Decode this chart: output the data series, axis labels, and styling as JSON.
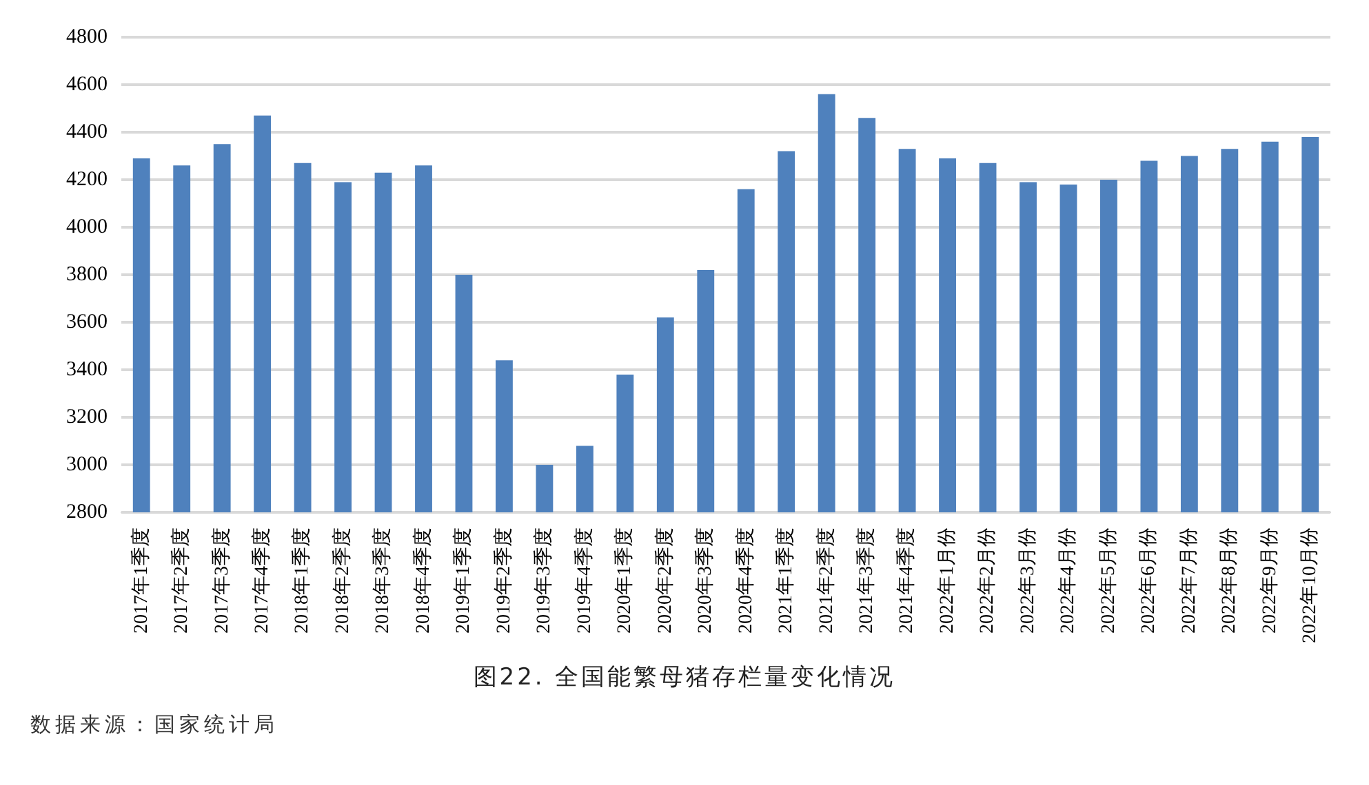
{
  "chart_data": {
    "type": "bar",
    "title": "图22.  全国能繁母猪存栏量变化情况",
    "annotations": [
      "数据来源：国家统计局"
    ],
    "categories": [
      "2017年1季度",
      "2017年2季度",
      "2017年3季度",
      "2017年4季度",
      "2018年1季度",
      "2018年2季度",
      "2018年3季度",
      "2018年4季度",
      "2019年1季度",
      "2019年2季度",
      "2019年3季度",
      "2019年4季度",
      "2020年1季度",
      "2020年2季度",
      "2020年3季度",
      "2020年4季度",
      "2021年1季度",
      "2021年2季度",
      "2021年3季度",
      "2021年4季度",
      "2022年1月份",
      "2022年2月份",
      "2022年3月份",
      "2022年4月份",
      "2022年5月份",
      "2022年6月份",
      "2022年7月份",
      "2022年8月份",
      "2022年9月份",
      "2022年10月份"
    ],
    "values": [
      4290,
      4260,
      4350,
      4470,
      4270,
      4190,
      4230,
      4260,
      3800,
      3440,
      3000,
      3080,
      3380,
      3620,
      3820,
      4160,
      4320,
      4560,
      4460,
      4330,
      4290,
      4270,
      4190,
      4180,
      4200,
      4280,
      4300,
      4330,
      4360,
      4380
    ],
    "color": "#4f81bd",
    "ylim": [
      2800,
      4800
    ],
    "yticks": [
      2800,
      3000,
      3200,
      3400,
      3600,
      3800,
      4000,
      4200,
      4400,
      4600,
      4800
    ],
    "grid": "y"
  }
}
